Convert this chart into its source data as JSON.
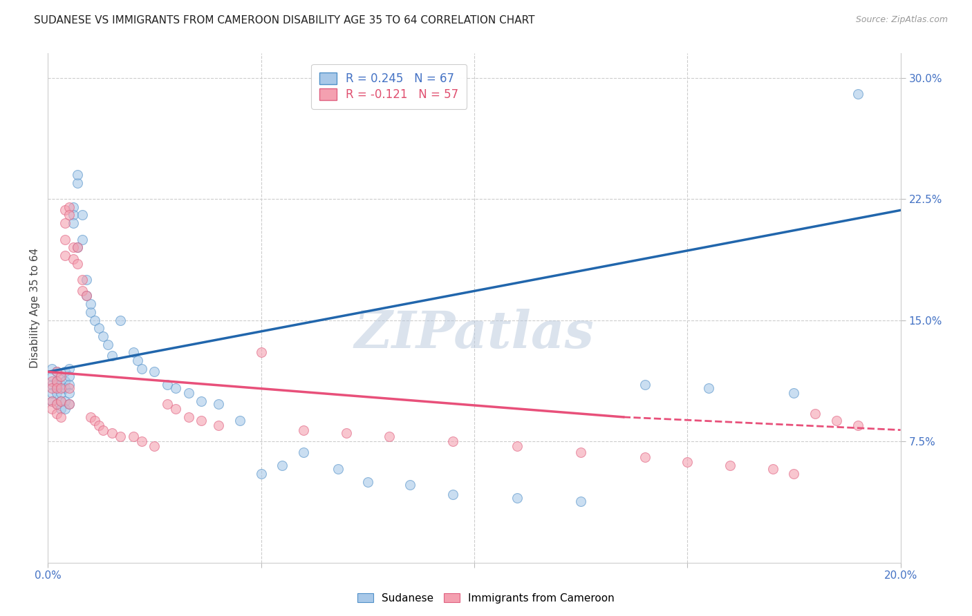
{
  "title": "SUDANESE VS IMMIGRANTS FROM CAMEROON DISABILITY AGE 35 TO 64 CORRELATION CHART",
  "source": "Source: ZipAtlas.com",
  "ylabel": "Disability Age 35 to 64",
  "x_min": 0.0,
  "x_max": 0.2,
  "y_min": 0.0,
  "y_max": 0.315,
  "y_ticks_right": [
    0.075,
    0.15,
    0.225,
    0.3
  ],
  "y_tick_labels_right": [
    "7.5%",
    "15.0%",
    "22.5%",
    "30.0%"
  ],
  "blue_R": 0.245,
  "blue_N": 67,
  "pink_R": -0.121,
  "pink_N": 57,
  "legend_label_blue": "Sudanese",
  "legend_label_pink": "Immigrants from Cameroon",
  "watermark": "ZIPatlas",
  "background_color": "#ffffff",
  "blue_color": "#a8c8e8",
  "pink_color": "#f4a0b0",
  "blue_edge_color": "#5090c8",
  "pink_edge_color": "#e06080",
  "blue_line_color": "#2166ac",
  "pink_line_color": "#e8507a",
  "grid_color": "#cccccc",
  "blue_scatter_x": [
    0.001,
    0.001,
    0.001,
    0.001,
    0.001,
    0.002,
    0.002,
    0.002,
    0.002,
    0.002,
    0.002,
    0.003,
    0.003,
    0.003,
    0.003,
    0.003,
    0.004,
    0.004,
    0.004,
    0.004,
    0.004,
    0.005,
    0.005,
    0.005,
    0.005,
    0.005,
    0.006,
    0.006,
    0.006,
    0.007,
    0.007,
    0.007,
    0.008,
    0.008,
    0.009,
    0.009,
    0.01,
    0.01,
    0.011,
    0.012,
    0.013,
    0.014,
    0.015,
    0.017,
    0.02,
    0.021,
    0.022,
    0.025,
    0.028,
    0.03,
    0.033,
    0.036,
    0.04,
    0.045,
    0.05,
    0.055,
    0.06,
    0.068,
    0.075,
    0.085,
    0.095,
    0.11,
    0.125,
    0.14,
    0.155,
    0.175,
    0.19
  ],
  "blue_scatter_y": [
    0.1,
    0.11,
    0.105,
    0.12,
    0.115,
    0.108,
    0.112,
    0.118,
    0.105,
    0.11,
    0.098,
    0.115,
    0.11,
    0.105,
    0.1,
    0.095,
    0.118,
    0.112,
    0.108,
    0.1,
    0.095,
    0.12,
    0.115,
    0.11,
    0.105,
    0.098,
    0.22,
    0.215,
    0.21,
    0.235,
    0.24,
    0.195,
    0.2,
    0.215,
    0.175,
    0.165,
    0.155,
    0.16,
    0.15,
    0.145,
    0.14,
    0.135,
    0.128,
    0.15,
    0.13,
    0.125,
    0.12,
    0.118,
    0.11,
    0.108,
    0.105,
    0.1,
    0.098,
    0.088,
    0.055,
    0.06,
    0.068,
    0.058,
    0.05,
    0.048,
    0.042,
    0.04,
    0.038,
    0.11,
    0.108,
    0.105,
    0.29
  ],
  "pink_scatter_x": [
    0.001,
    0.001,
    0.001,
    0.001,
    0.002,
    0.002,
    0.002,
    0.002,
    0.002,
    0.003,
    0.003,
    0.003,
    0.003,
    0.004,
    0.004,
    0.004,
    0.004,
    0.005,
    0.005,
    0.005,
    0.005,
    0.006,
    0.006,
    0.007,
    0.007,
    0.008,
    0.008,
    0.009,
    0.01,
    0.011,
    0.012,
    0.013,
    0.015,
    0.017,
    0.02,
    0.022,
    0.025,
    0.028,
    0.03,
    0.033,
    0.036,
    0.04,
    0.05,
    0.06,
    0.07,
    0.08,
    0.095,
    0.11,
    0.125,
    0.14,
    0.15,
    0.16,
    0.17,
    0.175,
    0.18,
    0.185,
    0.19
  ],
  "pink_scatter_y": [
    0.112,
    0.108,
    0.1,
    0.095,
    0.118,
    0.112,
    0.108,
    0.098,
    0.092,
    0.115,
    0.108,
    0.1,
    0.09,
    0.218,
    0.21,
    0.2,
    0.19,
    0.22,
    0.215,
    0.108,
    0.098,
    0.195,
    0.188,
    0.195,
    0.185,
    0.175,
    0.168,
    0.165,
    0.09,
    0.088,
    0.085,
    0.082,
    0.08,
    0.078,
    0.078,
    0.075,
    0.072,
    0.098,
    0.095,
    0.09,
    0.088,
    0.085,
    0.13,
    0.082,
    0.08,
    0.078,
    0.075,
    0.072,
    0.068,
    0.065,
    0.062,
    0.06,
    0.058,
    0.055,
    0.092,
    0.088,
    0.085
  ],
  "blue_line_x0": 0.0,
  "blue_line_y0": 0.118,
  "blue_line_x1": 0.2,
  "blue_line_y1": 0.218,
  "pink_line_x0": 0.0,
  "pink_line_y0": 0.118,
  "pink_line_x1_solid": 0.135,
  "pink_line_y1_solid": 0.09,
  "pink_line_x2": 0.2,
  "pink_line_y2": 0.082,
  "marker_size": 100
}
